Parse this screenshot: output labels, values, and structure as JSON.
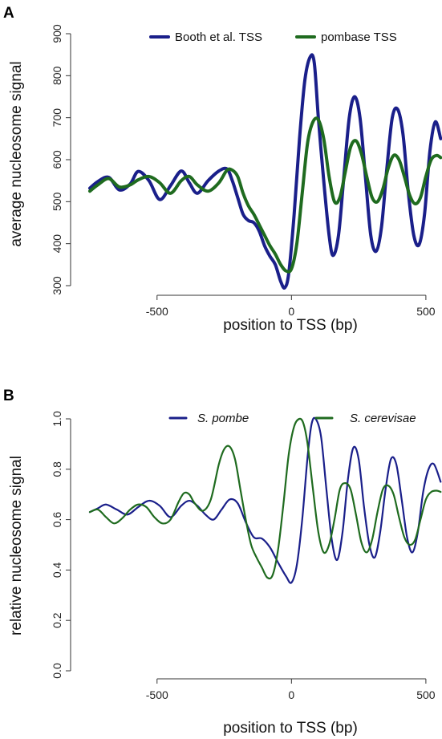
{
  "chart_data": [
    {
      "panel_label": "A",
      "type": "line",
      "xlabel": "position to TSS (bp)",
      "ylabel": "average nucleosome signal",
      "xlim": [
        -750,
        560
      ],
      "ylim": [
        300,
        900
      ],
      "x_ticks": [
        -500,
        0,
        500
      ],
      "y_ticks": [
        300,
        400,
        500,
        600,
        700,
        800,
        900
      ],
      "grid": false,
      "legend_position": "top",
      "series": [
        {
          "name": "Booth et al. TSS",
          "color": "#1a1f8a",
          "x": [
            -750,
            -720,
            -680,
            -640,
            -600,
            -570,
            -530,
            -490,
            -450,
            -410,
            -380,
            -350,
            -310,
            -270,
            -240,
            -220,
            -200,
            -180,
            -160,
            -140,
            -120,
            -100,
            -80,
            -60,
            -40,
            -25,
            -10,
            10,
            30,
            50,
            70,
            85,
            100,
            120,
            140,
            155,
            175,
            195,
            215,
            235,
            255,
            275,
            295,
            315,
            335,
            355,
            375,
            395,
            415,
            435,
            455,
            475,
            495,
            515,
            535,
            555
          ],
          "y": [
            532,
            548,
            558,
            528,
            542,
            572,
            550,
            505,
            538,
            573,
            545,
            520,
            550,
            573,
            578,
            550,
            510,
            470,
            455,
            450,
            430,
            395,
            370,
            350,
            310,
            295,
            330,
            470,
            650,
            790,
            845,
            830,
            700,
            550,
            420,
            372,
            420,
            560,
            700,
            750,
            700,
            560,
            420,
            382,
            440,
            580,
            700,
            720,
            660,
            520,
            420,
            398,
            470,
            620,
            690,
            650
          ]
        },
        {
          "name": "pombase TSS",
          "color": "#1f6b1f",
          "x": [
            -750,
            -720,
            -680,
            -640,
            -600,
            -570,
            -530,
            -490,
            -450,
            -410,
            -380,
            -350,
            -310,
            -270,
            -240,
            -220,
            -200,
            -180,
            -160,
            -140,
            -120,
            -100,
            -80,
            -60,
            -40,
            -20,
            0,
            20,
            40,
            60,
            80,
            100,
            120,
            140,
            160,
            180,
            200,
            220,
            240,
            260,
            280,
            300,
            320,
            340,
            360,
            380,
            400,
            420,
            440,
            460,
            480,
            500,
            520,
            540,
            555
          ],
          "y": [
            525,
            540,
            555,
            535,
            540,
            552,
            560,
            545,
            520,
            550,
            560,
            540,
            525,
            545,
            575,
            575,
            560,
            520,
            490,
            470,
            445,
            420,
            395,
            375,
            350,
            335,
            340,
            400,
            520,
            640,
            690,
            695,
            650,
            560,
            500,
            510,
            570,
            630,
            645,
            615,
            560,
            510,
            500,
            530,
            580,
            610,
            600,
            560,
            515,
            495,
            510,
            560,
            600,
            610,
            605
          ]
        }
      ]
    },
    {
      "panel_label": "B",
      "type": "line",
      "xlabel": "position to TSS (bp)",
      "ylabel": "relative nucleosome signal",
      "xlim": [
        -750,
        560
      ],
      "ylim": [
        0,
        1.0
      ],
      "x_ticks": [
        -500,
        0,
        500
      ],
      "y_ticks": [
        0.0,
        0.2,
        0.4,
        0.6,
        0.8,
        1.0
      ],
      "grid": false,
      "legend_position": "top",
      "series": [
        {
          "name": "S. pombe",
          "color": "#1a1f8a",
          "x": [
            -750,
            -720,
            -690,
            -650,
            -610,
            -570,
            -530,
            -490,
            -450,
            -410,
            -380,
            -350,
            -320,
            -290,
            -260,
            -230,
            -200,
            -170,
            -140,
            -110,
            -80,
            -50,
            -20,
            0,
            20,
            40,
            60,
            75,
            90,
            110,
            130,
            150,
            170,
            190,
            210,
            230,
            250,
            270,
            290,
            310,
            330,
            350,
            370,
            390,
            410,
            430,
            450,
            470,
            490,
            510,
            530,
            555
          ],
          "y": [
            0.63,
            0.645,
            0.66,
            0.64,
            0.62,
            0.65,
            0.675,
            0.655,
            0.61,
            0.655,
            0.675,
            0.655,
            0.62,
            0.6,
            0.64,
            0.68,
            0.665,
            0.59,
            0.53,
            0.525,
            0.49,
            0.43,
            0.375,
            0.35,
            0.42,
            0.6,
            0.85,
            0.98,
            1.0,
            0.93,
            0.72,
            0.52,
            0.44,
            0.55,
            0.76,
            0.885,
            0.84,
            0.65,
            0.5,
            0.45,
            0.55,
            0.72,
            0.84,
            0.82,
            0.68,
            0.53,
            0.47,
            0.55,
            0.71,
            0.8,
            0.82,
            0.75
          ]
        },
        {
          "name": "S. cerevisae",
          "color": "#1f6b1f",
          "x": [
            -750,
            -720,
            -690,
            -660,
            -630,
            -600,
            -570,
            -540,
            -510,
            -480,
            -450,
            -420,
            -400,
            -380,
            -360,
            -330,
            -300,
            -270,
            -250,
            -230,
            -210,
            -190,
            -170,
            -150,
            -130,
            -110,
            -90,
            -70,
            -50,
            -30,
            -10,
            10,
            30,
            45,
            60,
            80,
            100,
            120,
            140,
            160,
            180,
            200,
            220,
            240,
            260,
            280,
            300,
            320,
            340,
            360,
            380,
            400,
            420,
            440,
            460,
            480,
            500,
            520,
            540,
            555
          ],
          "y": [
            0.63,
            0.64,
            0.61,
            0.585,
            0.605,
            0.64,
            0.66,
            0.65,
            0.61,
            0.585,
            0.6,
            0.67,
            0.705,
            0.7,
            0.665,
            0.635,
            0.68,
            0.82,
            0.88,
            0.89,
            0.84,
            0.72,
            0.6,
            0.5,
            0.45,
            0.41,
            0.37,
            0.38,
            0.48,
            0.66,
            0.86,
            0.97,
            1.0,
            0.98,
            0.9,
            0.72,
            0.55,
            0.47,
            0.5,
            0.6,
            0.72,
            0.745,
            0.72,
            0.62,
            0.51,
            0.47,
            0.52,
            0.63,
            0.72,
            0.735,
            0.7,
            0.61,
            0.53,
            0.5,
            0.52,
            0.6,
            0.68,
            0.71,
            0.715,
            0.71
          ]
        }
      ]
    }
  ]
}
